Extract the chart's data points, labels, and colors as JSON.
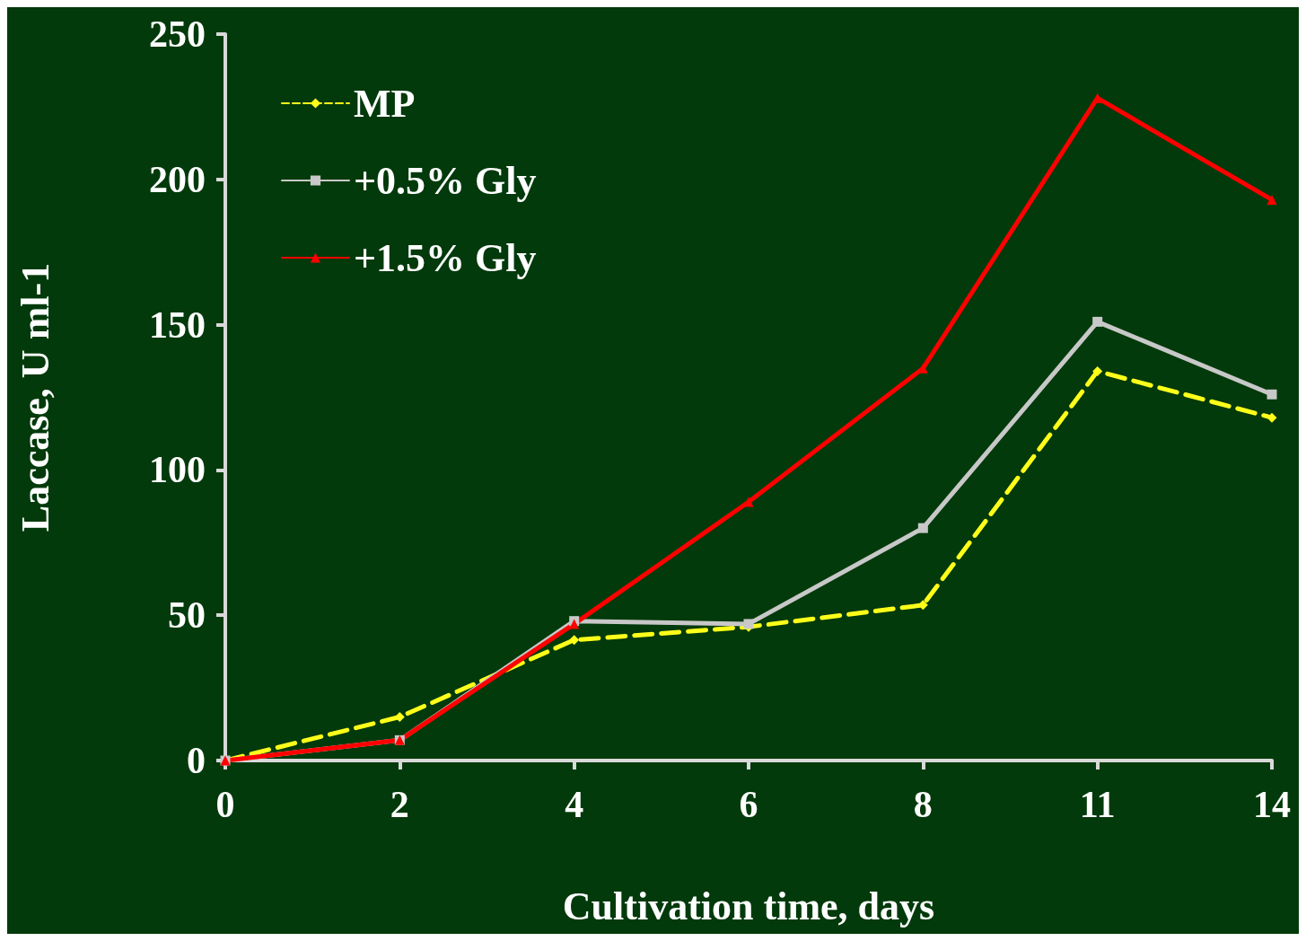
{
  "chart_data": {
    "type": "line",
    "xlabel": "Cultivation time, days",
    "ylabel": "Laccase, U ml-1",
    "categories": [
      "0",
      "2",
      "4",
      "6",
      "8",
      "11",
      "14"
    ],
    "ylim": [
      0,
      250
    ],
    "yticks": [
      0,
      50,
      100,
      150,
      200,
      250
    ],
    "grid": false,
    "legend": "top left",
    "series": [
      {
        "name": "MP",
        "color": "#ffff1a",
        "values": [
          0,
          15,
          41.5,
          46,
          53.5,
          134,
          118
        ],
        "line_style": "dashed",
        "marker": "diamond"
      },
      {
        "name": "+0.5% Gly",
        "color": "#c8c8c8",
        "values": [
          0,
          7,
          48,
          47,
          80,
          151,
          126
        ],
        "line_style": "solid",
        "marker": "square"
      },
      {
        "name": "+1.5% Gly",
        "color": "#ff0000",
        "values": [
          0,
          7,
          47,
          89,
          135,
          228,
          193
        ],
        "line_style": "solid",
        "marker": "triangle"
      }
    ]
  }
}
